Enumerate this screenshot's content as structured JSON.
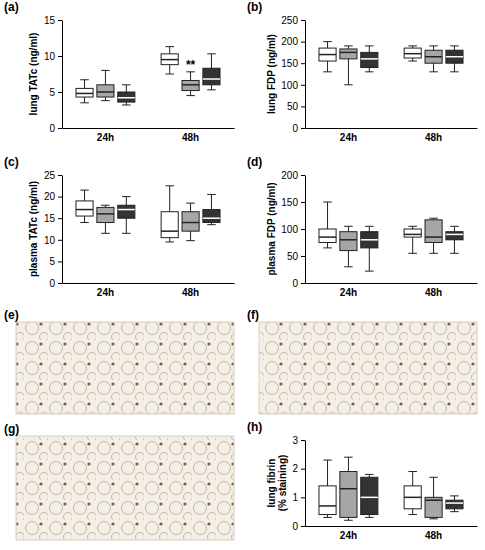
{
  "chart_data": [
    {
      "type": "box",
      "title": "(a)",
      "y_label": "lung TATc (ng/ml)",
      "categories": [
        "24h",
        "48h"
      ],
      "ylim": [
        0,
        15
      ],
      "yticks": [
        0,
        5,
        10,
        15
      ],
      "series": [
        {
          "color": "#ffffff",
          "values": [
            [
              3.5,
              4.3,
              4.8,
              5.5,
              6.7
            ],
            [
              7.5,
              8.8,
              9.5,
              10.3,
              11.3
            ]
          ]
        },
        {
          "color": "#a6a6a6",
          "values": [
            [
              3.8,
              4.3,
              5.0,
              6.0,
              8.0
            ],
            [
              4.5,
              5.2,
              6.0,
              6.6,
              7.8
            ]
          ]
        },
        {
          "color": "#333333",
          "values": [
            [
              3.2,
              3.6,
              4.2,
              5.0,
              6.0
            ],
            [
              5.3,
              6.0,
              6.8,
              8.3,
              10.3
            ]
          ]
        }
      ],
      "annotations": [
        {
          "text": "**",
          "category": 1,
          "series": 1
        }
      ]
    },
    {
      "type": "box",
      "title": "(b)",
      "y_label": "lung FDP (ng/ml)",
      "categories": [
        "24h",
        "48h"
      ],
      "ylim": [
        0,
        250
      ],
      "yticks": [
        0,
        50,
        100,
        150,
        200,
        250
      ],
      "series": [
        {
          "color": "#ffffff",
          "values": [
            [
              130,
              155,
              170,
              185,
              200
            ],
            [
              155,
              162,
              172,
              185,
              190
            ]
          ]
        },
        {
          "color": "#a6a6a6",
          "values": [
            [
              100,
              160,
              175,
              183,
              190
            ],
            [
              130,
              150,
              165,
              180,
              190
            ]
          ]
        },
        {
          "color": "#333333",
          "values": [
            [
              130,
              140,
              160,
              175,
              190
            ],
            [
              130,
              150,
              165,
              180,
              190
            ]
          ]
        }
      ]
    },
    {
      "type": "box",
      "title": "(c)",
      "y_label": "plasma TATc (ng/ml)",
      "categories": [
        "24h",
        "48h"
      ],
      "ylim": [
        0,
        25
      ],
      "yticks": [
        0,
        5,
        10,
        15,
        20,
        25
      ],
      "series": [
        {
          "color": "#ffffff",
          "values": [
            [
              14,
              15.5,
              17,
              19,
              21.5
            ],
            [
              9.5,
              10.5,
              12,
              16.5,
              22.5
            ]
          ]
        },
        {
          "color": "#a6a6a6",
          "values": [
            [
              11.5,
              14,
              16,
              17.5,
              18
            ],
            [
              9.8,
              12,
              14,
              16.5,
              18.5
            ]
          ]
        },
        {
          "color": "#333333",
          "values": [
            [
              11.5,
              15,
              17,
              18,
              20
            ],
            [
              13.5,
              14,
              15,
              17,
              20.5
            ]
          ]
        }
      ]
    },
    {
      "type": "box",
      "title": "(d)",
      "y_label": "plasma FDP (ng/ml)",
      "categories": [
        "24h",
        "48h"
      ],
      "ylim": [
        0,
        200
      ],
      "yticks": [
        0,
        50,
        100,
        150,
        200
      ],
      "series": [
        {
          "color": "#ffffff",
          "values": [
            [
              65,
              75,
              85,
              100,
              150
            ],
            [
              55,
              85,
              90,
              100,
              105
            ]
          ]
        },
        {
          "color": "#a6a6a6",
          "values": [
            [
              30,
              60,
              80,
              95,
              105
            ],
            [
              55,
              75,
              85,
              117,
              120
            ]
          ]
        },
        {
          "color": "#333333",
          "values": [
            [
              22,
              65,
              80,
              95,
              105
            ],
            [
              55,
              80,
              90,
              95,
              105
            ]
          ]
        }
      ]
    },
    {
      "type": "box",
      "title": "(h)",
      "y_label": "lung fibrin (% staining)",
      "categories": [
        "24h",
        "48h"
      ],
      "ylim": [
        0,
        3
      ],
      "yticks": [
        0,
        1,
        2,
        3
      ],
      "series": [
        {
          "color": "#ffffff",
          "values": [
            [
              0.3,
              0.4,
              0.7,
              1.4,
              2.3
            ],
            [
              0.4,
              0.6,
              1.0,
              1.4,
              1.9
            ]
          ]
        },
        {
          "color": "#a6a6a6",
          "values": [
            [
              0.2,
              0.3,
              1.3,
              1.9,
              2.4
            ],
            [
              0.25,
              0.3,
              0.9,
              1.0,
              1.7
            ]
          ]
        },
        {
          "color": "#333333",
          "values": [
            [
              0.3,
              0.4,
              1.0,
              1.7,
              1.8
            ],
            [
              0.5,
              0.6,
              0.8,
              0.9,
              1.05
            ]
          ]
        }
      ]
    }
  ],
  "images": [
    {
      "label": "(e)"
    },
    {
      "label": "(f)"
    },
    {
      "label": "(g)"
    }
  ]
}
